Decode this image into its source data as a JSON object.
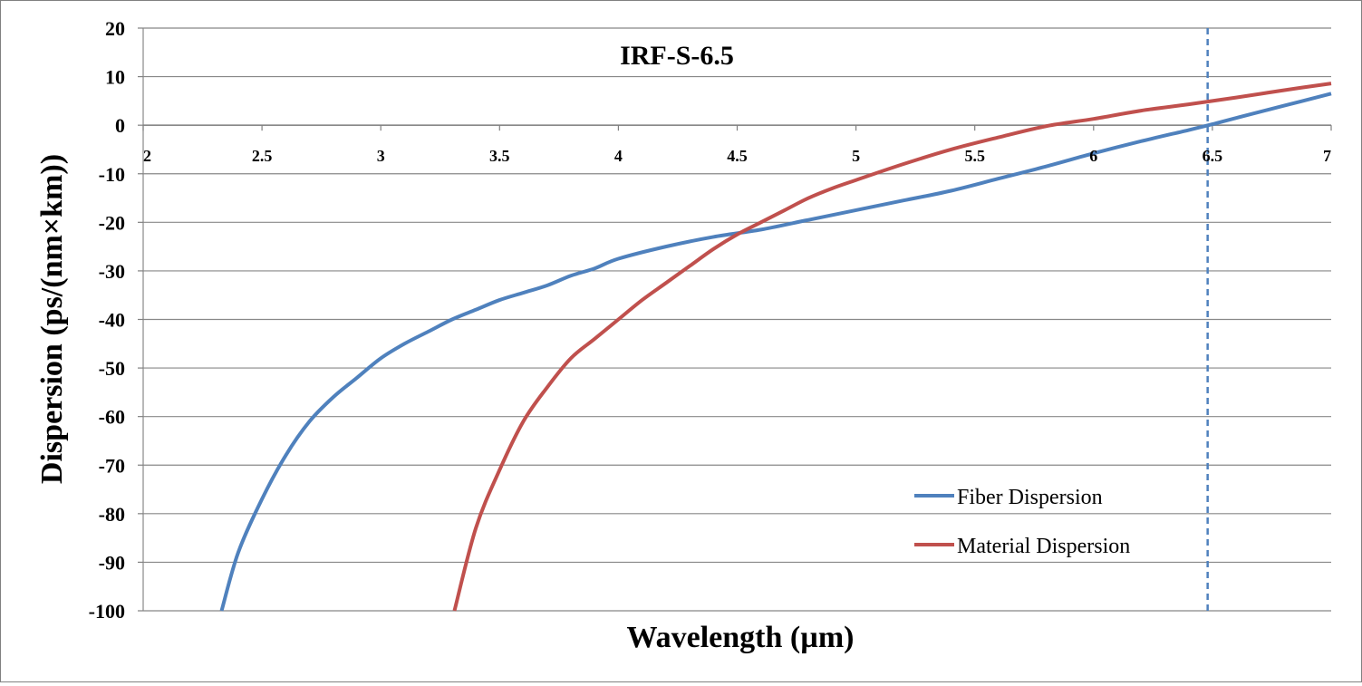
{
  "chart_data": {
    "type": "line",
    "title": "IRF-S-6.5",
    "xlabel": "Wavelength (µm)",
    "ylabel": "Dispersion (ps/(nm×km))",
    "xlim": [
      2,
      7
    ],
    "ylim": [
      -100,
      20
    ],
    "x_ticks": [
      "2",
      "2.5",
      "3",
      "3.5",
      "4",
      "4.5",
      "5",
      "5.5",
      "6",
      "6.5",
      "7"
    ],
    "y_ticks": [
      "20",
      "10",
      "0",
      "-10",
      "-20",
      "-30",
      "-40",
      "-50",
      "-60",
      "-70",
      "-80",
      "-90",
      "-100"
    ],
    "grid": true,
    "legend_position": "bottom-right",
    "reference_line": {
      "x": 6.48,
      "style": "dashed",
      "color": "#4f81bd"
    },
    "series": [
      {
        "name": "Fiber Dispersion",
        "color": "#4f81bd",
        "points": [
          [
            2.33,
            -100
          ],
          [
            2.4,
            -88
          ],
          [
            2.5,
            -77
          ],
          [
            2.6,
            -68
          ],
          [
            2.7,
            -61
          ],
          [
            2.8,
            -56
          ],
          [
            2.9,
            -52
          ],
          [
            3.0,
            -48
          ],
          [
            3.1,
            -45
          ],
          [
            3.2,
            -42.5
          ],
          [
            3.3,
            -40
          ],
          [
            3.4,
            -38
          ],
          [
            3.5,
            -36
          ],
          [
            3.6,
            -34.5
          ],
          [
            3.7,
            -33
          ],
          [
            3.8,
            -31
          ],
          [
            3.9,
            -29.5
          ],
          [
            4.0,
            -27.5
          ],
          [
            4.2,
            -25
          ],
          [
            4.4,
            -23
          ],
          [
            4.6,
            -21.5
          ],
          [
            4.8,
            -19.5
          ],
          [
            5.0,
            -17.5
          ],
          [
            5.2,
            -15.5
          ],
          [
            5.4,
            -13.5
          ],
          [
            5.6,
            -11
          ],
          [
            5.8,
            -8.5
          ],
          [
            6.0,
            -5.8
          ],
          [
            6.2,
            -3.3
          ],
          [
            6.4,
            -1
          ],
          [
            6.5,
            0.2
          ],
          [
            6.6,
            1.5
          ],
          [
            6.8,
            4
          ],
          [
            7.0,
            6.5
          ]
        ]
      },
      {
        "name": "Material Dispersion",
        "color": "#c0504d",
        "points": [
          [
            3.31,
            -100
          ],
          [
            3.4,
            -83
          ],
          [
            3.5,
            -71
          ],
          [
            3.6,
            -61
          ],
          [
            3.7,
            -54
          ],
          [
            3.8,
            -48
          ],
          [
            3.9,
            -44
          ],
          [
            4.0,
            -40
          ],
          [
            4.1,
            -36
          ],
          [
            4.2,
            -32.5
          ],
          [
            4.3,
            -29
          ],
          [
            4.4,
            -25.5
          ],
          [
            4.5,
            -22.5
          ],
          [
            4.6,
            -20
          ],
          [
            4.7,
            -17.5
          ],
          [
            4.8,
            -15
          ],
          [
            4.9,
            -13
          ],
          [
            5.0,
            -11.3
          ],
          [
            5.2,
            -8
          ],
          [
            5.4,
            -5
          ],
          [
            5.6,
            -2.5
          ],
          [
            5.8,
            -0.2
          ],
          [
            6.0,
            1.3
          ],
          [
            6.2,
            3
          ],
          [
            6.4,
            4.3
          ],
          [
            6.6,
            5.7
          ],
          [
            6.8,
            7.2
          ],
          [
            7.0,
            8.6
          ]
        ]
      }
    ]
  }
}
